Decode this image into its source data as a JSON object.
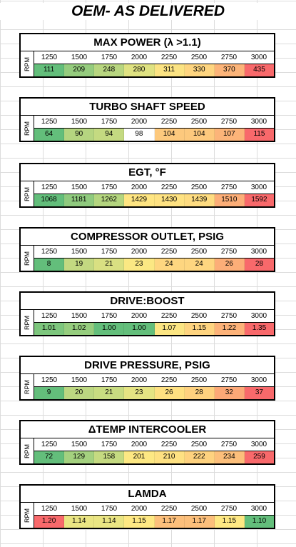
{
  "page_title": "OEM- AS DELIVERED",
  "axis_label": "RPM",
  "rpm": [
    "1250",
    "1500",
    "1750",
    "2000",
    "2250",
    "2500",
    "2750",
    "3000"
  ],
  "panels": [
    {
      "title": "MAX POWER (λ >1.1)",
      "values": [
        "111",
        "209",
        "248",
        "280",
        "311",
        "330",
        "370",
        "435"
      ],
      "colors": [
        "#63be7b",
        "#95cc7e",
        "#b8d680",
        "#dfe282",
        "#fbe383",
        "#fed580",
        "#fcb479",
        "#f8696b"
      ]
    },
    {
      "title": "TURBO SHAFT SPEED",
      "values": [
        "64",
        "90",
        "94",
        "98",
        "104",
        "104",
        "107",
        "115"
      ],
      "colors": [
        "#63be7b",
        "#b5d580",
        "#c4da81",
        "#daе182",
        "#fdc97d",
        "#fdc97d",
        "#fcb479",
        "#f8696b"
      ]
    },
    {
      "title": "EGT, °F",
      "values": [
        "1068",
        "1181",
        "1262",
        "1429",
        "1430",
        "1439",
        "1510",
        "1592"
      ],
      "colors": [
        "#63be7b",
        "#8fca7e",
        "#b4d57f",
        "#fee582",
        "#fee282",
        "#fedc81",
        "#fcae78",
        "#f8696b"
      ]
    },
    {
      "title": "COMPRESSOR OUTLET, PSIG",
      "values": [
        "8",
        "19",
        "21",
        "23",
        "24",
        "24",
        "26",
        "28"
      ],
      "colors": [
        "#63be7b",
        "#c3d981",
        "#d9e082",
        "#fbe883",
        "#fed680",
        "#fed680",
        "#fcae78",
        "#f8696b"
      ]
    },
    {
      "title": "DRIVE:BOOST",
      "values": [
        "1.01",
        "1.02",
        "1.00",
        "1.00",
        "1.07",
        "1.15",
        "1.22",
        "1.35"
      ],
      "colors": [
        "#7dc67d",
        "#96cd7e",
        "#63be7b",
        "#63be7b",
        "#fbe583",
        "#fed480",
        "#fcb279",
        "#f8696b"
      ]
    },
    {
      "title": "DRIVE PRESSURE, PSIG",
      "values": [
        "9",
        "20",
        "21",
        "23",
        "26",
        "28",
        "32",
        "37"
      ],
      "colors": [
        "#63be7b",
        "#bcd781",
        "#c8dc81",
        "#e5e483",
        "#fee081",
        "#fed17f",
        "#fca877",
        "#f8696b"
      ]
    },
    {
      "title": "ΔTEMP INTERCOOLER",
      "values": [
        "72",
        "129",
        "158",
        "201",
        "210",
        "222",
        "234",
        "259"
      ],
      "colors": [
        "#63be7b",
        "#a4d17f",
        "#c5da81",
        "#fde883",
        "#fee182",
        "#fed27f",
        "#fcbf7b",
        "#f8696b"
      ]
    },
    {
      "title": "LAMDA",
      "values": [
        "1.20",
        "1.14",
        "1.14",
        "1.15",
        "1.17",
        "1.17",
        "1.15",
        "1.10"
      ],
      "colors": [
        "#f8696b",
        "#eae583",
        "#eae583",
        "#fee883",
        "#fcbf7b",
        "#fcbf7b",
        "#fee883",
        "#63be7b"
      ]
    }
  ]
}
